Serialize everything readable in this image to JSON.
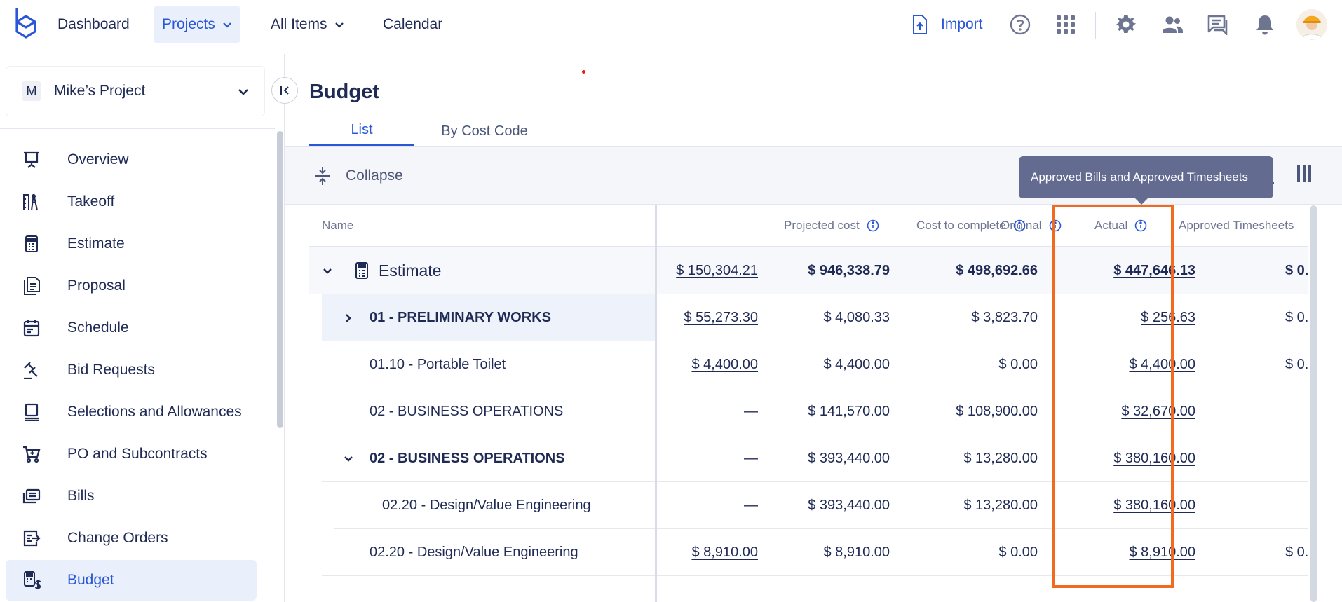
{
  "nav": {
    "items": [
      {
        "label": "Dashboard"
      },
      {
        "label": "Projects"
      },
      {
        "label": "All Items"
      },
      {
        "label": "Calendar"
      }
    ],
    "import_label": "Import"
  },
  "sidebar": {
    "project_badge": "M",
    "project_name": "Mike’s Project",
    "items": [
      {
        "label": "Overview",
        "icon": "presentation-icon"
      },
      {
        "label": "Takeoff",
        "icon": "takeoff-icon"
      },
      {
        "label": "Estimate",
        "icon": "calculator-icon"
      },
      {
        "label": "Proposal",
        "icon": "proposal-icon"
      },
      {
        "label": "Schedule",
        "icon": "calendar-icon"
      },
      {
        "label": "Bid Requests",
        "icon": "gavel-icon"
      },
      {
        "label": "Selections and Allowances",
        "icon": "selections-icon"
      },
      {
        "label": "PO and Subcontracts",
        "icon": "cart-icon"
      },
      {
        "label": "Bills",
        "icon": "bills-icon"
      },
      {
        "label": "Change Orders",
        "icon": "change-orders-icon"
      },
      {
        "label": "Budget",
        "icon": "budget-icon"
      }
    ]
  },
  "page": {
    "title": "Budget",
    "tabs": [
      {
        "label": "List"
      },
      {
        "label": "By Cost Code"
      }
    ],
    "collapse_label": "Collapse",
    "tooltip": "Approved Bills and Approved Timesheets"
  },
  "table": {
    "headers": {
      "name": "Name",
      "original": "Original",
      "projected": "Projected cost",
      "to_complete": "Cost to complete",
      "actual": "Actual",
      "timesheets": "Approved Timesheets"
    },
    "rows": [
      {
        "name": "Estimate",
        "original": "$ 150,304.21",
        "projected": "$ 946,338.79",
        "to_complete": "$ 498,692.66",
        "actual": "$ 447,646.13",
        "timesheets": "$ 0."
      },
      {
        "name": "01 - PRELIMINARY WORKS",
        "original": "$ 55,273.30",
        "projected": "$ 4,080.33",
        "to_complete": "$ 3,823.70",
        "actual": "$ 256.63",
        "timesheets": "$ 0."
      },
      {
        "name": "01.10 - Portable Toilet",
        "original": "$ 4,400.00",
        "projected": "$ 4,400.00",
        "to_complete": "$ 0.00",
        "actual": "$ 4,400.00",
        "timesheets": "$ 0."
      },
      {
        "name": "02 - BUSINESS OPERATIONS",
        "original": "—",
        "projected": "$ 141,570.00",
        "to_complete": "$ 108,900.00",
        "actual": "$ 32,670.00",
        "timesheets": ""
      },
      {
        "name": "02 - BUSINESS OPERATIONS",
        "original": "—",
        "projected": "$ 393,440.00",
        "to_complete": "$ 13,280.00",
        "actual": "$ 380,160.00",
        "timesheets": ""
      },
      {
        "name": "02.20 - Design/Value Engineering",
        "original": "—",
        "projected": "$ 393,440.00",
        "to_complete": "$ 13,280.00",
        "actual": "$ 380,160.00",
        "timesheets": ""
      },
      {
        "name": "02.20 - Design/Value Engineering",
        "original": "$ 8,910.00",
        "projected": "$ 8,910.00",
        "to_complete": "$ 0.00",
        "actual": "$ 8,910.00",
        "timesheets": "$ 0."
      }
    ]
  },
  "colors": {
    "accent": "#2a56d8",
    "text": "#1f2a55",
    "highlight": "#f26a1e",
    "tooltip_bg": "#646b91"
  }
}
